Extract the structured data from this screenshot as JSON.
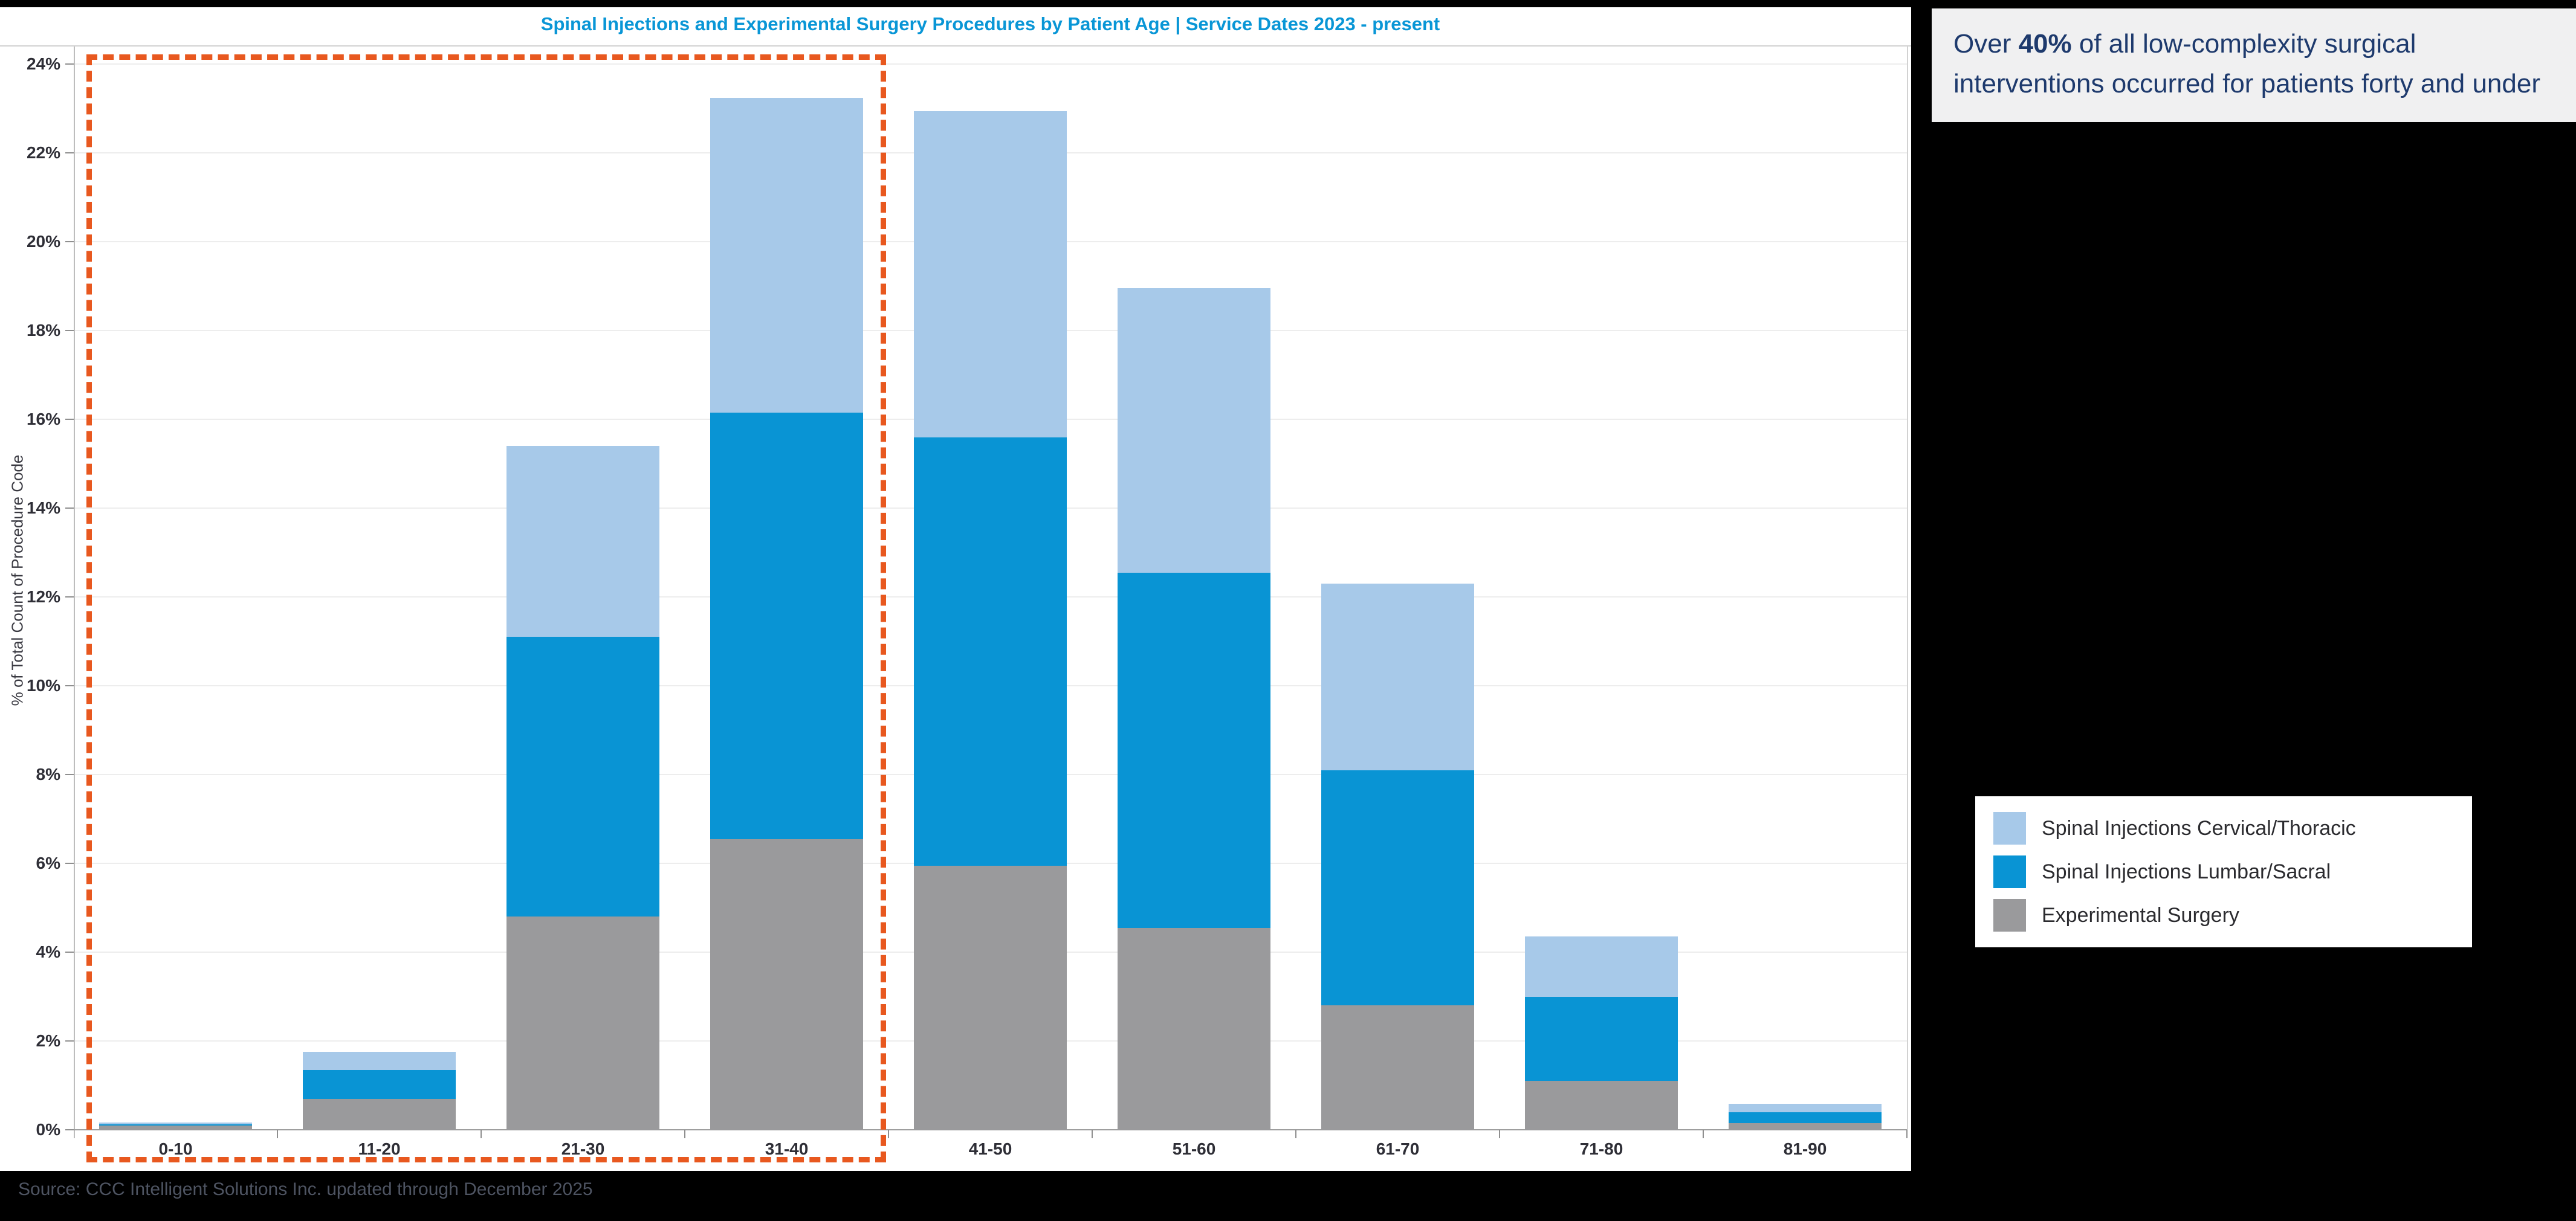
{
  "colors": {
    "cervical": "#a7c9e9",
    "lumbar": "#0994d4",
    "experimental": "#9a9a9c",
    "title_text": "#0996d6",
    "highlight": "#e8581f",
    "callout_text": "#1e3a6d",
    "callout_bg": "#f0f0f1"
  },
  "callout": {
    "prefix": "Over ",
    "bold": "40%",
    "suffix": " of all low-complexity surgical interventions occurred for patients forty and under"
  },
  "source": {
    "text": "Source: CCC Intelligent Solutions Inc. updated through December 2025"
  },
  "chart_data": {
    "type": "bar",
    "stacked": true,
    "title": "Spinal Injections and Experimental Surgery Procedures by Patient Age | Service Dates 2023 - present",
    "categories": [
      "0-10",
      "11-20",
      "21-30",
      "31-40",
      "41-50",
      "51-60",
      "61-70",
      "71-80",
      "81-90"
    ],
    "series": [
      {
        "name": "Experimental Surgery",
        "color": "#9a9a9c",
        "values": [
          0.1,
          0.7,
          4.8,
          6.55,
          5.95,
          4.55,
          2.8,
          1.1,
          0.15
        ]
      },
      {
        "name": "Spinal Injections Lumbar/Sacral",
        "color": "#0994d4",
        "values": [
          0.02,
          0.65,
          6.3,
          9.6,
          9.65,
          8.0,
          5.3,
          1.9,
          0.25
        ]
      },
      {
        "name": "Spinal Injections Cervical/Thoracic",
        "color": "#a7c9e9",
        "values": [
          0.05,
          0.4,
          4.3,
          7.1,
          7.35,
          6.4,
          4.2,
          1.35,
          0.18
        ]
      }
    ],
    "stack_totals": [
      0.17,
      1.75,
      15.4,
      23.25,
      22.95,
      18.95,
      12.3,
      4.35,
      0.58
    ],
    "ylabel": "% of Total Count of Procedure Code",
    "xlabel": "",
    "ylim": [
      0,
      24.4
    ],
    "ytick_step": 2,
    "ytick_suffix": "%",
    "grid": true,
    "legend_position": "right",
    "legend": [
      "Spinal Injections Cervical/Thoracic",
      "Spinal Injections Lumbar/Sacral",
      "Experimental Surgery"
    ],
    "annotation_box": {
      "categories_spanned": [
        "0-10",
        "11-20",
        "21-30",
        "31-40"
      ],
      "style": "dashed-orange"
    }
  }
}
